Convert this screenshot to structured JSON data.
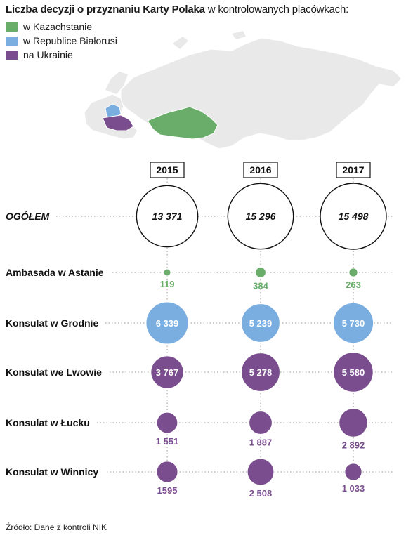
{
  "title": {
    "bold": "Liczba decyzji o przyznaniu Karty Polaka",
    "rest": "w kontrolowanych placówkach:"
  },
  "legend": [
    {
      "label": "w Kazachstanie",
      "color": "#6aad6a"
    },
    {
      "label": "w Republice Białorusi",
      "color": "#7aaee0"
    },
    {
      "label": "na Ukrainie",
      "color": "#7a4e8e"
    }
  ],
  "source": "Źródło: Dane z kontroli NIK",
  "chart_data": {
    "type": "bubble",
    "years": [
      "2015",
      "2016",
      "2017"
    ],
    "rows": [
      {
        "label": "OGÓŁEM",
        "color": "#ffffff",
        "italic": true,
        "values": [
          13371,
          15296,
          15498
        ],
        "labels": [
          "13 371",
          "15 296",
          "15 498"
        ],
        "label_inside": true
      },
      {
        "label": "Ambasada w Astanie",
        "color": "#6aad6a",
        "values": [
          119,
          384,
          263
        ],
        "labels": [
          "119",
          "384",
          "263"
        ],
        "label_inside": false
      },
      {
        "label": "Konsulat w Grodnie",
        "color": "#7aaee0",
        "values": [
          6339,
          5239,
          5730
        ],
        "labels": [
          "6 339",
          "5 239",
          "5 730"
        ],
        "label_inside": true
      },
      {
        "label": "Konsulat we Lwowie",
        "color": "#7a4e8e",
        "values": [
          3767,
          5278,
          5580
        ],
        "labels": [
          "3 767",
          "5 278",
          "5 580"
        ],
        "label_inside": true
      },
      {
        "label": "Konsulat w Łucku",
        "color": "#7a4e8e",
        "values": [
          1551,
          1887,
          2892
        ],
        "labels": [
          "1 551",
          "1 887",
          "2 892"
        ],
        "label_inside": false
      },
      {
        "label": "Konsulat w Winnicy",
        "color": "#7a4e8e",
        "values": [
          1595,
          2508,
          1033
        ],
        "labels": [
          "1595",
          "2 508",
          "1 033"
        ],
        "label_inside": false
      }
    ]
  }
}
